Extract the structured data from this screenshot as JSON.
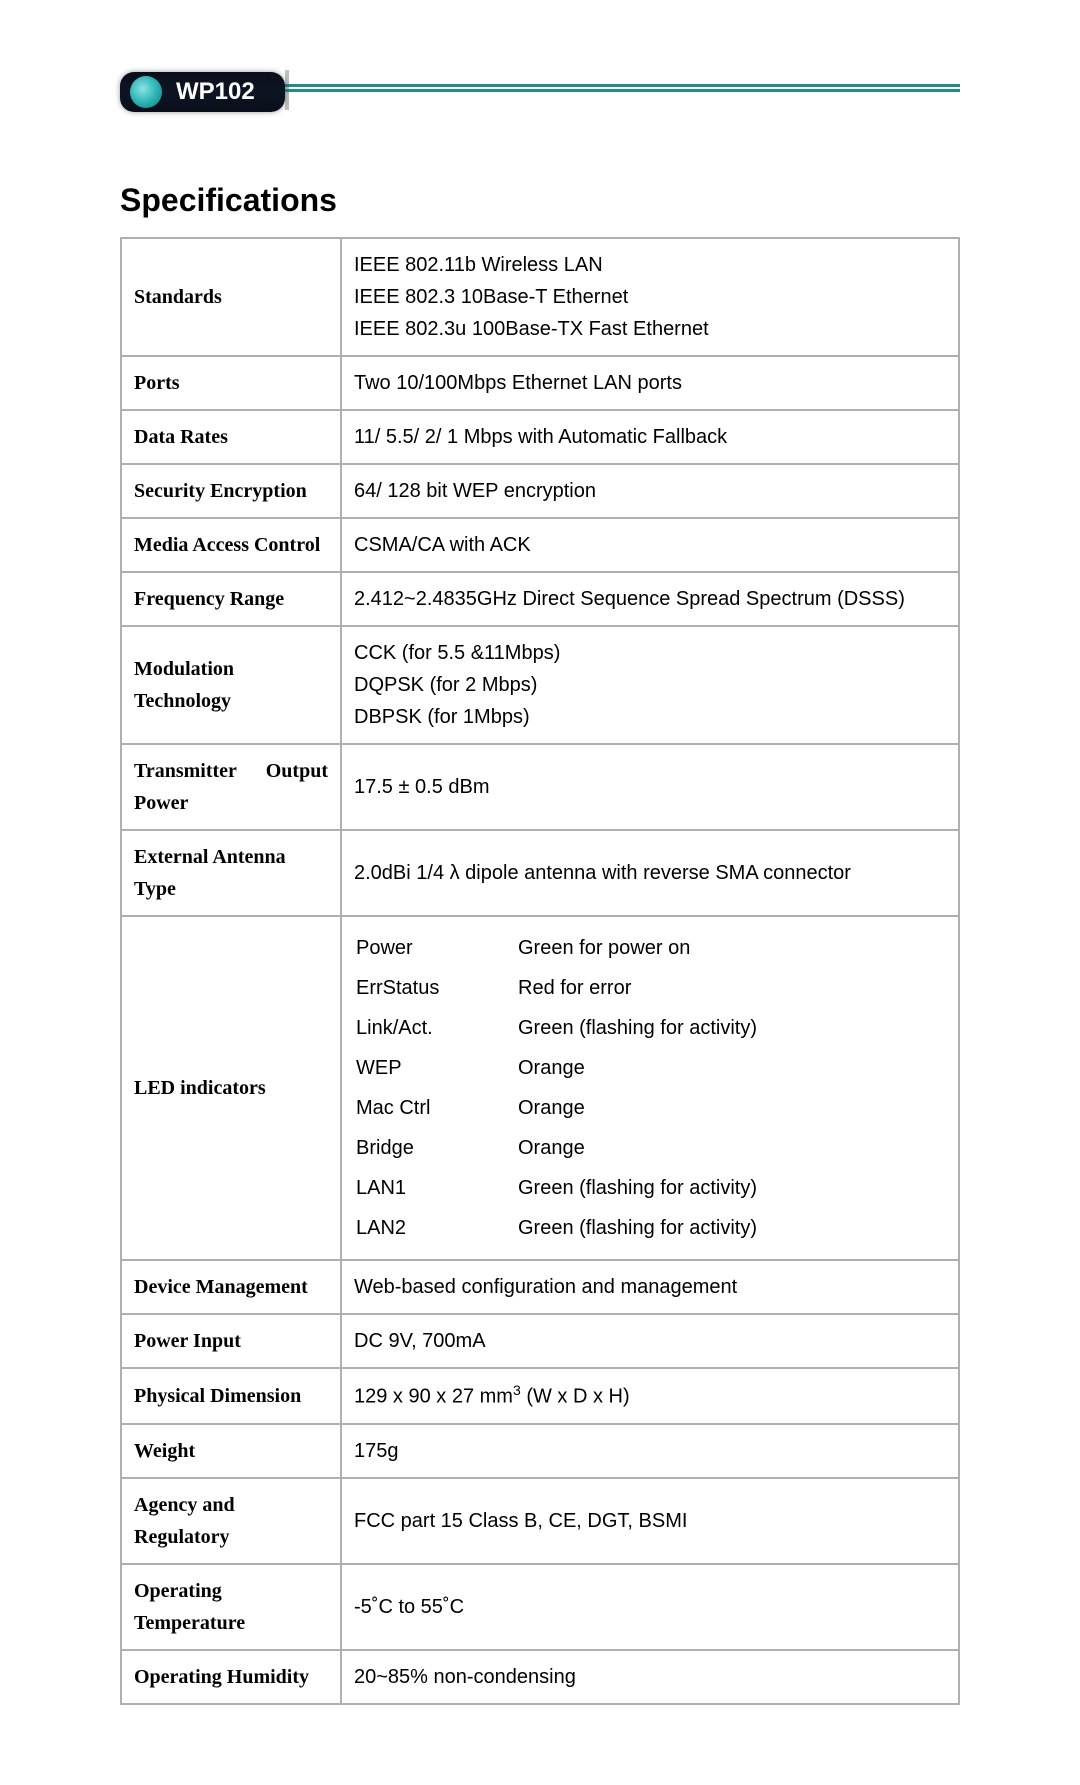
{
  "badge": "WP102",
  "title": "Specifications",
  "colors": {
    "accent": "#238a86",
    "border": "#b0b0b0",
    "text": "#000000"
  },
  "rows": {
    "standards": {
      "label": "Standards",
      "lines": [
        "IEEE 802.11b Wireless LAN",
        "IEEE 802.3 10Base-T Ethernet",
        "IEEE 802.3u 100Base-TX Fast Ethernet"
      ]
    },
    "ports": {
      "label": "Ports",
      "value": "Two 10/100Mbps Ethernet LAN ports"
    },
    "data_rates": {
      "label": "Data Rates",
      "value": "11/ 5.5/ 2/ 1 Mbps with Automatic Fallback"
    },
    "security": {
      "label": "Security Encryption",
      "value": "64/ 128 bit WEP encryption"
    },
    "mac": {
      "label": "Media Access Control",
      "value": "CSMA/CA with ACK"
    },
    "freq": {
      "label": "Frequency Range",
      "value": "2.412~2.4835GHz Direct Sequence Spread Spectrum (DSSS)"
    },
    "modulation": {
      "label": "Modulation Technology",
      "lines": [
        "CCK (for 5.5 &11Mbps)",
        "DQPSK (for 2 Mbps)",
        "DBPSK (for 1Mbps)"
      ]
    },
    "tx_power": {
      "label": "Transmitter Output Power",
      "value": "17.5 ± 0.5 dBm"
    },
    "antenna": {
      "label": "External Antenna Type",
      "value": "2.0dBi 1/4 λ dipole antenna with reverse SMA connector"
    },
    "leds": {
      "label": "LED indicators",
      "items": [
        {
          "name": "Power",
          "desc": "Green for power on"
        },
        {
          "name": "ErrStatus",
          "desc": "Red for error"
        },
        {
          "name": "Link/Act.",
          "desc": "Green (flashing for activity)"
        },
        {
          "name": "WEP",
          "desc": "Orange"
        },
        {
          "name": "Mac Ctrl",
          "desc": "Orange"
        },
        {
          "name": "Bridge",
          "desc": "Orange"
        },
        {
          "name": "LAN1",
          "desc": "Green (flashing for activity)"
        },
        {
          "name": "LAN2",
          "desc": "Green (flashing for activity)"
        }
      ]
    },
    "mgmt": {
      "label": "Device Management",
      "value": "Web-based configuration and management"
    },
    "power": {
      "label": "Power Input",
      "value": "DC 9V, 700mA"
    },
    "dim": {
      "label": "Physical Dimension",
      "value_pre": "129 x 90 x 27 mm",
      "value_sup": "3",
      "value_post": " (W x D x H)"
    },
    "weight": {
      "label": "Weight",
      "value": "175g"
    },
    "agency": {
      "label": "Agency and Regulatory",
      "value": "FCC part 15 Class B, CE, DGT, BSMI"
    },
    "op_temp": {
      "label": "Operating Temperature",
      "value": "-5˚C to 55˚C"
    },
    "op_hum": {
      "label": "Operating Humidity",
      "value": "20~85% non-condensing"
    }
  }
}
